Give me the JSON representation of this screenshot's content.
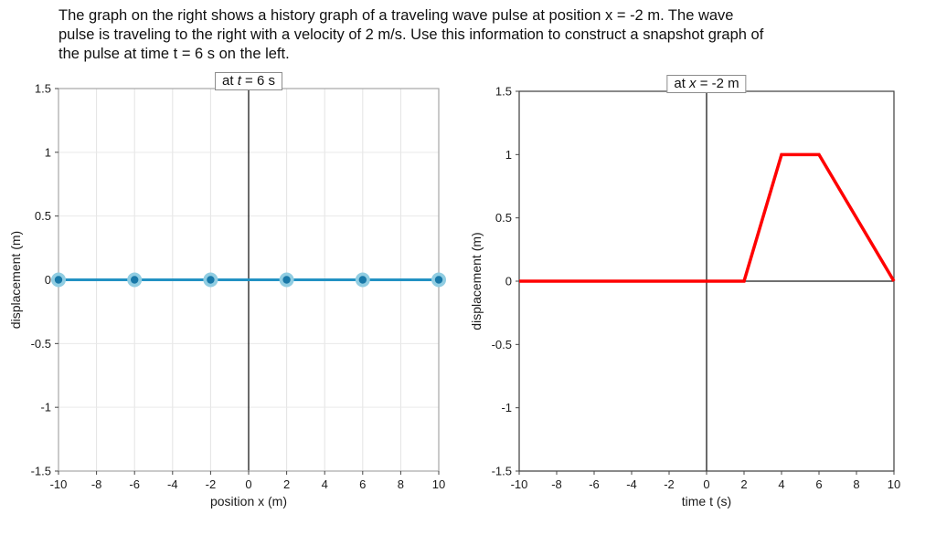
{
  "instructions": {
    "lines": [
      "The graph on the right shows a history graph of a traveling wave pulse at position x = -2 m. The wave",
      "pulse is traveling to the right with a velocity of 2 m/s. Use this information to construct a snapshot graph of",
      "the pulse at time t = 6 s on the left."
    ]
  },
  "chart_data": [
    {
      "type": "scatter",
      "name": "snapshot-graph",
      "title": "at t = 6 s",
      "title_prefix": "at ",
      "title_var": "t",
      "title_suffix": " = 6 s",
      "xlabel": "position x (m)",
      "ylabel": "displacement (m)",
      "xlim": [
        -10,
        10
      ],
      "ylim": [
        -1.5,
        1.5
      ],
      "xticks": [
        -10,
        -8,
        -6,
        -4,
        -2,
        0,
        2,
        4,
        6,
        8,
        10
      ],
      "xtick_labels": [
        "-10",
        "-8",
        "-6",
        "-4",
        "-2",
        "0",
        "2",
        "4",
        "6",
        "8",
        "10"
      ],
      "yticks": [
        -1.5,
        -1,
        -0.5,
        0,
        0.5,
        1,
        1.5
      ],
      "ytick_labels": [
        "-1.5",
        "-1",
        "-0.5",
        "0",
        "0.5",
        "1",
        "1.5"
      ],
      "grid": true,
      "legend": "none",
      "line_color": "#2292c3",
      "line_width": 3,
      "line_points": [
        [
          -10,
          0
        ],
        [
          10,
          0
        ]
      ],
      "marker_points": [
        [
          -10,
          0
        ],
        [
          -6,
          0
        ],
        [
          -2,
          0
        ],
        [
          2,
          0
        ],
        [
          6,
          0
        ],
        [
          10,
          0
        ]
      ],
      "marker_fill": "#1878a8",
      "marker_ring": "#90cde2",
      "frame_color": "#a6a6a6"
    },
    {
      "type": "line",
      "name": "history-graph",
      "title": "at x = -2 m",
      "title_prefix": "at ",
      "title_var": "x",
      "title_suffix": " = -2 m",
      "xlabel": "time t (s)",
      "ylabel": "displacement (m)",
      "xlim": [
        -10,
        10
      ],
      "ylim": [
        -1.5,
        1.5
      ],
      "xticks": [
        -10,
        -8,
        -6,
        -4,
        -2,
        0,
        2,
        4,
        6,
        8,
        10
      ],
      "xtick_labels": [
        "-10",
        "-8",
        "-6",
        "-4",
        "-2",
        "0",
        "2",
        "4",
        "6",
        "8",
        "10"
      ],
      "yticks": [
        -1.5,
        -1,
        -0.5,
        0,
        0.5,
        1,
        1.5
      ],
      "ytick_labels": [
        "-1.5",
        "-1",
        "-0.5",
        "0",
        "0.5",
        "1",
        "1.5"
      ],
      "grid": false,
      "legend": "none",
      "line_color": "#ff0000",
      "line_width": 3.5,
      "line_points": [
        [
          -10,
          0
        ],
        [
          2,
          0
        ],
        [
          4,
          1
        ],
        [
          6,
          1
        ],
        [
          10,
          0
        ]
      ],
      "frame_color": "#3d3d3d"
    }
  ]
}
